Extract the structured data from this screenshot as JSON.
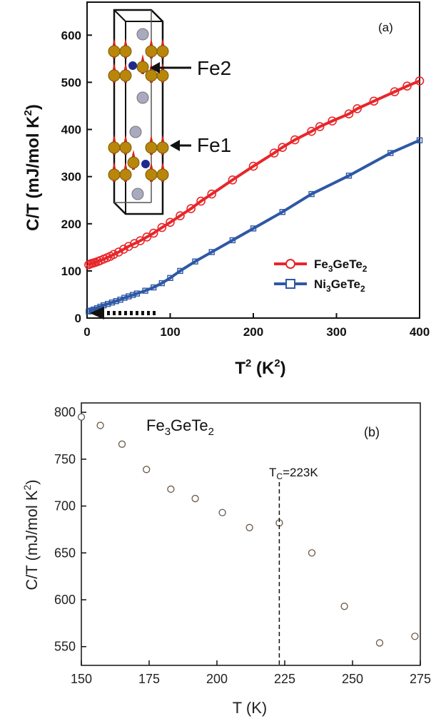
{
  "chart_data": [
    {
      "type": "line",
      "panel_label": "(a)",
      "xlabel": "T² (K²)",
      "ylabel": "C/T (mJ/mol K²)",
      "xlim": [
        0,
        400
      ],
      "ylim": [
        0,
        670
      ],
      "x_ticks": [
        0,
        100,
        200,
        300,
        400
      ],
      "y_ticks": [
        0,
        100,
        200,
        300,
        400,
        500,
        600
      ],
      "legend_position": "lower-right",
      "series": [
        {
          "name": "Fe3GeTe2",
          "label_parts": [
            "Fe",
            "3",
            "GeTe",
            "2"
          ],
          "color": "#e8262a",
          "marker": "circle",
          "x": [
            2,
            4,
            6,
            8,
            10,
            13,
            16,
            20,
            24,
            28,
            32,
            38,
            44,
            50,
            57,
            64,
            72,
            80,
            90,
            100,
            112,
            125,
            137,
            150,
            175,
            200,
            225,
            235,
            250,
            270,
            280,
            295,
            315,
            325,
            345,
            370,
            385,
            400
          ],
          "y": [
            113,
            115,
            116,
            117,
            118,
            120,
            122,
            125,
            128,
            131,
            135,
            140,
            146,
            152,
            158,
            164,
            172,
            180,
            192,
            203,
            217,
            232,
            248,
            263,
            293,
            322,
            350,
            362,
            378,
            396,
            406,
            418,
            433,
            444,
            460,
            480,
            492,
            503
          ]
        },
        {
          "name": "Ni3GeTe2",
          "label_parts": [
            "Ni",
            "3",
            "GeTe",
            "2"
          ],
          "color": "#2e58a6",
          "marker": "square",
          "x": [
            2,
            5,
            8,
            12,
            16,
            20,
            25,
            30,
            35,
            40,
            45,
            50,
            55,
            60,
            70,
            80,
            90,
            100,
            112,
            130,
            150,
            175,
            200,
            235,
            270,
            315,
            365,
            400
          ],
          "y": [
            14,
            16,
            18,
            21,
            24,
            27,
            30,
            33,
            36,
            39,
            43,
            46,
            49,
            52,
            58,
            65,
            74,
            85,
            100,
            120,
            140,
            165,
            190,
            225,
            263,
            302,
            350,
            377
          ]
        }
      ],
      "inset_annotations": [
        "Fe2",
        "Fe1"
      ]
    },
    {
      "type": "scatter",
      "panel_label": "(b)",
      "xlabel": "T  (K)",
      "ylabel": "C/T  (mJ/mol K²)",
      "xlim": [
        150,
        275
      ],
      "ylim": [
        530,
        810
      ],
      "x_ticks": [
        150,
        175,
        200,
        225,
        250,
        275
      ],
      "y_ticks": [
        550,
        600,
        650,
        700,
        750,
        800
      ],
      "series": [
        {
          "name": "Fe3GeTe2",
          "label_parts": [
            "Fe",
            "3",
            "GeTe",
            "2"
          ],
          "marker": "open-circle",
          "x": [
            150,
            157,
            165,
            174,
            183,
            192,
            202,
            212,
            223,
            235,
            247,
            260,
            273
          ],
          "y": [
            795,
            786,
            766,
            739,
            718,
            708,
            693,
            677,
            682,
            650,
            593,
            554,
            561
          ]
        }
      ],
      "annotation": {
        "text_parts": [
          "T",
          "C",
          "=223K"
        ],
        "x": 223
      }
    }
  ]
}
